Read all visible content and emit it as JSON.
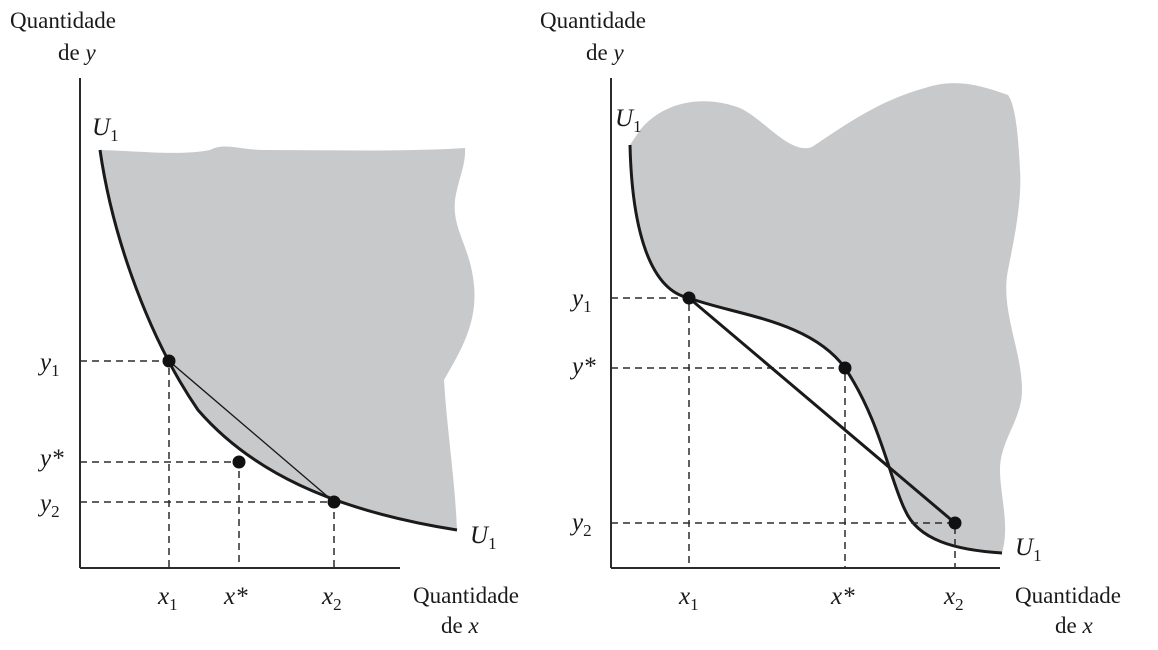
{
  "panels": [
    {
      "y_axis_title": [
        "Quantidade",
        "de"
      ],
      "y_axis_var": "y",
      "x_axis_title": [
        "Quantidade",
        "de"
      ],
      "x_axis_var": "x",
      "curve_label": {
        "base": "U",
        "sub": "1"
      },
      "y_ticks": [
        {
          "base": "y",
          "sub": "1"
        },
        {
          "base": "y*",
          "sub": ""
        },
        {
          "base": "y",
          "sub": "2"
        }
      ],
      "x_ticks": [
        {
          "base": "x",
          "sub": "1"
        },
        {
          "base": "x*",
          "sub": ""
        },
        {
          "base": "x",
          "sub": "2"
        }
      ]
    },
    {
      "y_axis_title": [
        "Quantidade",
        "de"
      ],
      "y_axis_var": "y",
      "x_axis_title": [
        "Quantidade",
        "de"
      ],
      "x_axis_var": "x",
      "curve_label": {
        "base": "U",
        "sub": "1"
      },
      "y_ticks": [
        {
          "base": "y",
          "sub": "1"
        },
        {
          "base": "y*",
          "sub": ""
        },
        {
          "base": "y",
          "sub": "2"
        }
      ],
      "x_ticks": [
        {
          "base": "x",
          "sub": "1"
        },
        {
          "base": "x*",
          "sub": ""
        },
        {
          "base": "x",
          "sub": "2"
        }
      ]
    }
  ],
  "colors": {
    "shade": "#c8c9cb",
    "ink": "#1a1a1a"
  }
}
